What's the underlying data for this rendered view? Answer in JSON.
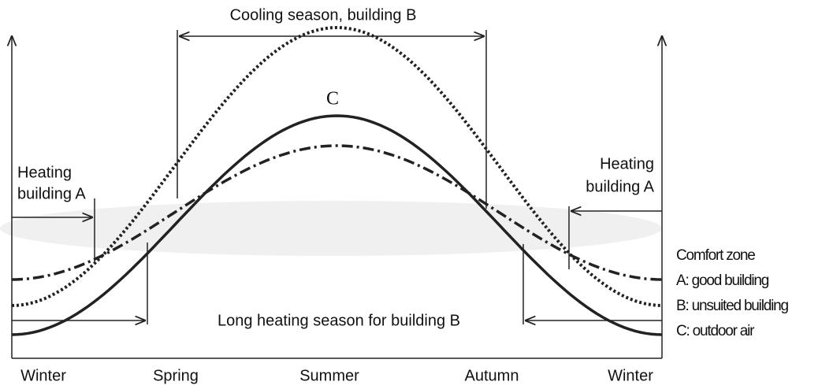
{
  "cooling_label": "Cooling season, building B",
  "heating_left": [
    "Heating",
    "building A"
  ],
  "heating_right": [
    "Heating",
    "building A"
  ],
  "long_heating_label": "Long heating season for building B",
  "curve_label": "C",
  "legend": [
    "Comfort zone",
    "A: good building",
    "B: unsuited building",
    "C: outdoor air"
  ],
  "seasons": [
    "Winter",
    "Spring",
    "Summer",
    "Autumn",
    "Winter"
  ]
}
